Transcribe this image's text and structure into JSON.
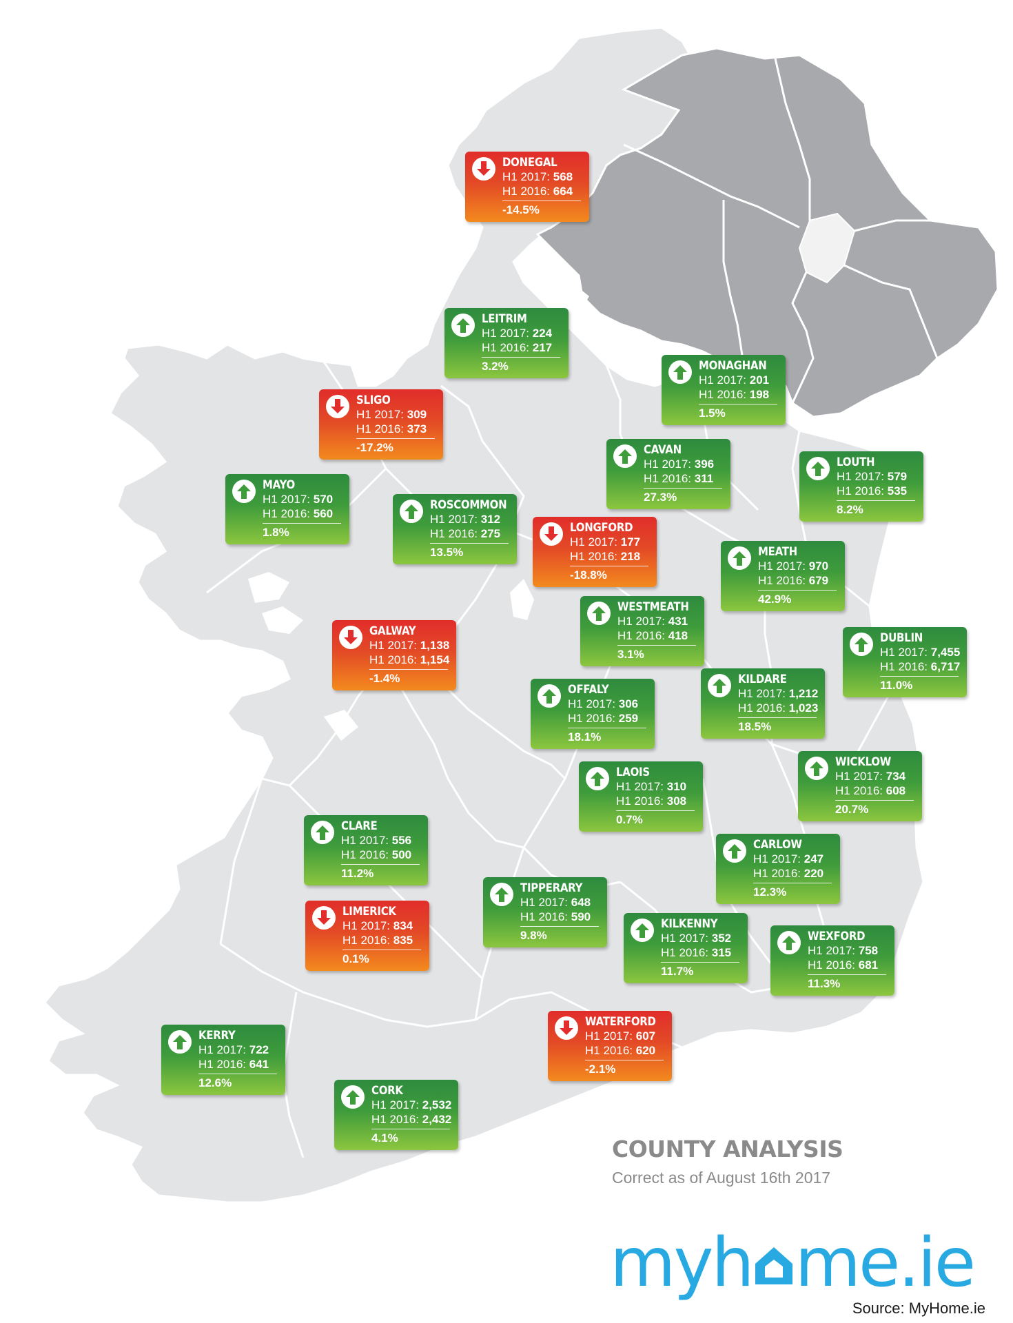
{
  "title": "COUNTY ANALYSIS",
  "subtitle": "Correct as of August 16th 2017",
  "brand": {
    "part1": "myh",
    "part2": "me.ie"
  },
  "source": "Source: MyHome.ie",
  "colors": {
    "up": "#3f9c3b",
    "down": "#e12d2b",
    "land": "#e3e4e6",
    "northern_ireland": "#a7a9ac",
    "brand_blue": "#29a9e1",
    "heading_grey": "#8a8a8a"
  },
  "counties": [
    {
      "id": "donegal",
      "name": "DONEGAL",
      "h1_2017_label": "H1 2017:",
      "h1_2017": "568",
      "h1_2016_label": "H1 2016:",
      "h1_2016": "664",
      "change": "-14.5%",
      "trend": "down",
      "icon": "arrow-down-icon"
    },
    {
      "id": "leitrim",
      "name": "LEITRIM",
      "h1_2017_label": "H1 2017:",
      "h1_2017": "224",
      "h1_2016_label": "H1 2016:",
      "h1_2016": "217",
      "change": "3.2%",
      "trend": "up",
      "icon": "arrow-up-icon"
    },
    {
      "id": "monaghan",
      "name": "MONAGHAN",
      "h1_2017_label": "H1 2017:",
      "h1_2017": "201",
      "h1_2016_label": "H1 2016:",
      "h1_2016": "198",
      "change": "1.5%",
      "trend": "up",
      "icon": "arrow-up-icon"
    },
    {
      "id": "sligo",
      "name": "SLIGO",
      "h1_2017_label": "H1 2017:",
      "h1_2017": "309",
      "h1_2016_label": "H1 2016:",
      "h1_2016": "373",
      "change": "-17.2%",
      "trend": "down",
      "icon": "arrow-down-icon"
    },
    {
      "id": "cavan",
      "name": "CAVAN",
      "h1_2017_label": "H1 2017:",
      "h1_2017": "396",
      "h1_2016_label": "H1 2016:",
      "h1_2016": "311",
      "change": "27.3%",
      "trend": "up",
      "icon": "arrow-up-icon"
    },
    {
      "id": "louth",
      "name": "LOUTH",
      "h1_2017_label": "H1 2017:",
      "h1_2017": "579",
      "h1_2016_label": "H1 2016:",
      "h1_2016": "535",
      "change": "8.2%",
      "trend": "up",
      "icon": "arrow-up-icon"
    },
    {
      "id": "mayo",
      "name": "MAYO",
      "h1_2017_label": "H1 2017:",
      "h1_2017": "570",
      "h1_2016_label": "H1 2016:",
      "h1_2016": "560",
      "change": "1.8%",
      "trend": "up",
      "icon": "arrow-up-icon"
    },
    {
      "id": "roscommon",
      "name": "ROSCOMMON",
      "h1_2017_label": "H1 2017:",
      "h1_2017": "312",
      "h1_2016_label": "H1 2016:",
      "h1_2016": "275",
      "change": "13.5%",
      "trend": "up",
      "icon": "arrow-up-icon"
    },
    {
      "id": "longford",
      "name": "LONGFORD",
      "h1_2017_label": "H1 2017:",
      "h1_2017": "177",
      "h1_2016_label": "H1 2016:",
      "h1_2016": "218",
      "change": "-18.8%",
      "trend": "down",
      "icon": "arrow-down-icon"
    },
    {
      "id": "meath",
      "name": "MEATH",
      "h1_2017_label": "H1 2017:",
      "h1_2017": "970",
      "h1_2016_label": "H1 2016:",
      "h1_2016": "679",
      "change": "42.9%",
      "trend": "up",
      "icon": "arrow-up-icon"
    },
    {
      "id": "westmeath",
      "name": "WESTMEATH",
      "h1_2017_label": "H1 2017:",
      "h1_2017": "431",
      "h1_2016_label": "H1 2016:",
      "h1_2016": "418",
      "change": "3.1%",
      "trend": "up",
      "icon": "arrow-up-icon"
    },
    {
      "id": "galway",
      "name": "GALWAY",
      "h1_2017_label": "H1 2017:",
      "h1_2017": "1,138",
      "h1_2016_label": "H1 2016:",
      "h1_2016": "1,154",
      "change": "-1.4%",
      "trend": "down",
      "icon": "arrow-down-icon"
    },
    {
      "id": "dublin",
      "name": "DUBLIN",
      "h1_2017_label": "H1 2017:",
      "h1_2017": "7,455",
      "h1_2016_label": "H1 2016:",
      "h1_2016": "6,717",
      "change": "11.0%",
      "trend": "up",
      "icon": "arrow-up-icon"
    },
    {
      "id": "offaly",
      "name": "OFFALY",
      "h1_2017_label": "H1 2017:",
      "h1_2017": "306",
      "h1_2016_label": "H1 2016:",
      "h1_2016": "259",
      "change": "18.1%",
      "trend": "up",
      "icon": "arrow-up-icon"
    },
    {
      "id": "kildare",
      "name": "KILDARE",
      "h1_2017_label": "H1 2017:",
      "h1_2017": "1,212",
      "h1_2016_label": "H1 2016:",
      "h1_2016": "1,023",
      "change": "18.5%",
      "trend": "up",
      "icon": "arrow-up-icon"
    },
    {
      "id": "wicklow",
      "name": "WICKLOW",
      "h1_2017_label": "H1 2017:",
      "h1_2017": "734",
      "h1_2016_label": "H1 2016:",
      "h1_2016": "608",
      "change": "20.7%",
      "trend": "up",
      "icon": "arrow-up-icon"
    },
    {
      "id": "laois",
      "name": "LAOIS",
      "h1_2017_label": "H1 2017:",
      "h1_2017": "310",
      "h1_2016_label": "H1 2016:",
      "h1_2016": "308",
      "change": "0.7%",
      "trend": "up",
      "icon": "arrow-up-icon"
    },
    {
      "id": "clare",
      "name": "CLARE",
      "h1_2017_label": "H1 2017:",
      "h1_2017": "556",
      "h1_2016_label": "H1 2016:",
      "h1_2016": "500",
      "change": "11.2%",
      "trend": "up",
      "icon": "arrow-up-icon"
    },
    {
      "id": "carlow",
      "name": "CARLOW",
      "h1_2017_label": "H1 2017:",
      "h1_2017": "247",
      "h1_2016_label": "H1 2016:",
      "h1_2016": "220",
      "change": "12.3%",
      "trend": "up",
      "icon": "arrow-up-icon"
    },
    {
      "id": "tipperary",
      "name": "TIPPERARY",
      "h1_2017_label": "H1 2017:",
      "h1_2017": "648",
      "h1_2016_label": "H1 2016:",
      "h1_2016": "590",
      "change": "9.8%",
      "trend": "up",
      "icon": "arrow-up-icon"
    },
    {
      "id": "limerick",
      "name": "LIMERICK",
      "h1_2017_label": "H1 2017:",
      "h1_2017": "834",
      "h1_2016_label": "H1 2016:",
      "h1_2016": "835",
      "change": "0.1%",
      "trend": "down",
      "icon": "arrow-down-icon"
    },
    {
      "id": "kilkenny",
      "name": "KILKENNY",
      "h1_2017_label": "H1 2017:",
      "h1_2017": "352",
      "h1_2016_label": "H1 2016:",
      "h1_2016": "315",
      "change": "11.7%",
      "trend": "up",
      "icon": "arrow-up-icon"
    },
    {
      "id": "wexford",
      "name": "WEXFORD",
      "h1_2017_label": "H1 2017:",
      "h1_2017": "758",
      "h1_2016_label": "H1 2016:",
      "h1_2016": "681",
      "change": "11.3%",
      "trend": "up",
      "icon": "arrow-up-icon"
    },
    {
      "id": "waterford",
      "name": "WATERFORD",
      "h1_2017_label": "H1 2017:",
      "h1_2017": "607",
      "h1_2016_label": "H1 2016:",
      "h1_2016": "620",
      "change": "-2.1%",
      "trend": "down",
      "icon": "arrow-down-icon"
    },
    {
      "id": "kerry",
      "name": "KERRY",
      "h1_2017_label": "H1 2017:",
      "h1_2017": "722",
      "h1_2016_label": "H1 2016:",
      "h1_2016": "641",
      "change": "12.6%",
      "trend": "up",
      "icon": "arrow-up-icon"
    },
    {
      "id": "cork",
      "name": "CORK",
      "h1_2017_label": "H1 2017:",
      "h1_2017": "2,532",
      "h1_2016_label": "H1 2016:",
      "h1_2016": "2,432",
      "change": "4.1%",
      "trend": "up",
      "icon": "arrow-up-icon"
    }
  ]
}
